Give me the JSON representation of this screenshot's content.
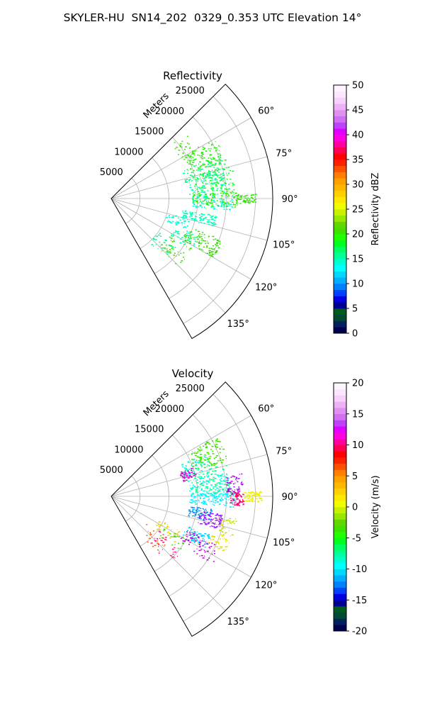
{
  "figure_title": "SKYLER-HU  SN14_202  0329_0.353 UTC Elevation 14°",
  "colors": {
    "grid": "#b0b0b0",
    "frame": "#000000"
  },
  "chart_data": [
    {
      "type": "polar-sector",
      "title": "Reflectivity",
      "range_label": "Meters",
      "theta_range_deg": [
        45,
        150
      ],
      "theta_ticks_deg": [
        45,
        60,
        75,
        90,
        105,
        120,
        135,
        150
      ],
      "theta_tick_labels": [
        "60°",
        "75°",
        "90°",
        "105°",
        "120°",
        "135°"
      ],
      "r_range_m": [
        0,
        28000
      ],
      "r_ticks_m": [
        5000,
        10000,
        15000,
        20000,
        25000
      ],
      "r_tick_labels": [
        "5000",
        "10000",
        "15000",
        "20000",
        "25000"
      ],
      "grid": true,
      "echo_clusters": [
        {
          "theta": [
            48,
            62
          ],
          "r": [
            13500,
            17500
          ],
          "color": "#44e800",
          "density": 0.15
        },
        {
          "theta": [
            60,
            72
          ],
          "r": [
            14500,
            21000
          ],
          "color": "#2aef10",
          "density": 0.55
        },
        {
          "theta": [
            68,
            78
          ],
          "r": [
            13000,
            20500
          ],
          "color": "#00ff7a",
          "density": 0.35
        },
        {
          "theta": [
            74,
            86
          ],
          "r": [
            14500,
            21500
          ],
          "color": "#08ff2c",
          "density": 0.55
        },
        {
          "theta": [
            76,
            88
          ],
          "r": [
            13500,
            20000
          ],
          "color": "#00ffc0",
          "density": 0.3
        },
        {
          "theta": [
            86,
            94
          ],
          "r": [
            14000,
            22000
          ],
          "color": "#28f000",
          "density": 0.6
        },
        {
          "theta": [
            88,
            96
          ],
          "r": [
            14000,
            21000
          ],
          "color": "#00ffd8",
          "density": 0.35
        },
        {
          "theta": [
            88,
            92
          ],
          "r": [
            21500,
            25000
          ],
          "color": "#2ce800",
          "density": 0.3
        },
        {
          "theta": [
            99,
            105
          ],
          "r": [
            12500,
            18500
          ],
          "color": "#00ffb8",
          "density": 0.45
        },
        {
          "theta": [
            104,
            112
          ],
          "r": [
            10000,
            14000
          ],
          "color": "#00ffd0",
          "density": 0.2
        },
        {
          "theta": [
            110,
            120
          ],
          "r": [
            14000,
            20500
          ],
          "color": "#34e000",
          "density": 0.5
        },
        {
          "theta": [
            113,
            123
          ],
          "r": [
            12000,
            16500
          ],
          "color": "#00ffaa",
          "density": 0.2
        },
        {
          "theta": [
            122,
            136
          ],
          "r": [
            11500,
            16500
          ],
          "color": "#42de00",
          "density": 0.2
        },
        {
          "theta": [
            125,
            140
          ],
          "r": [
            9500,
            14000
          ],
          "color": "#00ff90",
          "density": 0.12
        }
      ],
      "colorbar": {
        "label": "Reflectivity dBZ",
        "range": [
          0,
          50
        ],
        "ticks": [
          0,
          5,
          10,
          15,
          20,
          25,
          30,
          35,
          40,
          45,
          50
        ],
        "colors": [
          "#000050",
          "#002060",
          "#004a33",
          "#005a20",
          "#000090",
          "#0000e0",
          "#0040ff",
          "#0080ff",
          "#00b0ff",
          "#00d8ff",
          "#00ffff",
          "#00ffd0",
          "#00ff9a",
          "#00ff60",
          "#00ff20",
          "#20ff00",
          "#40e000",
          "#60d800",
          "#98e800",
          "#c8f000",
          "#f0ff00",
          "#ffe800",
          "#ffd000",
          "#ffb800",
          "#ffa000",
          "#ff8000",
          "#ff5000",
          "#ff2000",
          "#ff0000",
          "#ff0050",
          "#ff00a0",
          "#ff00e0",
          "#e000ff",
          "#c040ff",
          "#d070f0",
          "#e090f0",
          "#f0b0f8",
          "#f8d0fc",
          "#fce8fe",
          "#fff4ff"
        ]
      }
    },
    {
      "type": "polar-sector",
      "title": "Velocity",
      "range_label": "Meters",
      "theta_range_deg": [
        45,
        150
      ],
      "theta_ticks_deg": [
        45,
        60,
        75,
        90,
        105,
        120,
        135,
        150
      ],
      "theta_tick_labels": [
        "60°",
        "75°",
        "90°",
        "105°",
        "120°",
        "135°"
      ],
      "r_range_m": [
        0,
        28000
      ],
      "r_ticks_m": [
        5000,
        10000,
        15000,
        20000,
        25000
      ],
      "r_tick_labels": [
        "5000",
        "10000",
        "15000",
        "20000",
        "25000"
      ],
      "grid": true,
      "echo_clusters": [
        {
          "theta": [
            60,
            73
          ],
          "r": [
            15000,
            21000
          ],
          "color": "#40e000",
          "density": 0.55
        },
        {
          "theta": [
            65,
            76
          ],
          "r": [
            13000,
            18000
          ],
          "color": "#00ffd8",
          "density": 0.3
        },
        {
          "theta": [
            70,
            78
          ],
          "r": [
            12500,
            15000
          ],
          "color": "#d000d0",
          "density": 0.25
        },
        {
          "theta": [
            74,
            88
          ],
          "r": [
            14500,
            21000
          ],
          "color": "#00ff80",
          "density": 0.45
        },
        {
          "theta": [
            78,
            90
          ],
          "r": [
            13500,
            20500
          ],
          "color": "#00ffe8",
          "density": 0.5
        },
        {
          "theta": [
            80,
            88
          ],
          "r": [
            20000,
            23000
          ],
          "color": "#b000f0",
          "density": 0.25
        },
        {
          "theta": [
            88,
            95
          ],
          "r": [
            13500,
            21500
          ],
          "color": "#00f0ff",
          "density": 0.55
        },
        {
          "theta": [
            88,
            94
          ],
          "r": [
            20500,
            23000
          ],
          "color": "#ff0070",
          "density": 0.3
        },
        {
          "theta": [
            88,
            92
          ],
          "r": [
            23000,
            26000
          ],
          "color": "#f0f000",
          "density": 0.35
        },
        {
          "theta": [
            97,
            104
          ],
          "r": [
            13500,
            17500
          ],
          "color": "#0090ff",
          "density": 0.35
        },
        {
          "theta": [
            99,
            107
          ],
          "r": [
            15500,
            19500
          ],
          "color": "#a020f0",
          "density": 0.4
        },
        {
          "theta": [
            100,
            108
          ],
          "r": [
            19500,
            22000
          ],
          "color": "#c8e000",
          "density": 0.15
        },
        {
          "theta": [
            108,
            116
          ],
          "r": [
            18500,
            22000
          ],
          "color": "#f0e000",
          "density": 0.2
        },
        {
          "theta": [
            111,
            119
          ],
          "r": [
            14000,
            18500
          ],
          "color": "#00d0ff",
          "density": 0.3
        },
        {
          "theta": [
            114,
            124
          ],
          "r": [
            14000,
            21000
          ],
          "color": "#c000e0",
          "density": 0.3
        },
        {
          "theta": [
            116,
            126
          ],
          "r": [
            9000,
            13500
          ],
          "color": "#e8d000",
          "density": 0.15
        },
        {
          "theta": [
            120,
            130
          ],
          "r": [
            10500,
            15000
          ],
          "color": "#40e000",
          "density": 0.1
        },
        {
          "theta": [
            126,
            140
          ],
          "r": [
            10000,
            15500
          ],
          "color": "#ff2080",
          "density": 0.15
        },
        {
          "theta": [
            128,
            142
          ],
          "r": [
            7500,
            13500
          ],
          "color": "#ff6000",
          "density": 0.1
        }
      ],
      "colorbar": {
        "label": "Velocity (m/s)",
        "range": [
          -20,
          20
        ],
        "ticks": [
          -20,
          -15,
          -10,
          -5,
          0,
          5,
          10,
          15,
          20
        ],
        "colors": [
          "#000050",
          "#002060",
          "#004a33",
          "#005a20",
          "#000090",
          "#0000e0",
          "#0040ff",
          "#0080ff",
          "#00b0ff",
          "#00d8ff",
          "#00ffff",
          "#00ffd0",
          "#00ff9a",
          "#00ff60",
          "#00ff20",
          "#20ff00",
          "#40e000",
          "#60d800",
          "#98e800",
          "#c8f000",
          "#f0ff00",
          "#ffe800",
          "#ffd000",
          "#ffb800",
          "#ffa000",
          "#ff8000",
          "#ff5000",
          "#ff2000",
          "#ff0000",
          "#ff0050",
          "#ff00a0",
          "#ff00e0",
          "#e000ff",
          "#c040ff",
          "#d070f0",
          "#e090f0",
          "#f0b0f8",
          "#f8d0fc",
          "#fce8fe",
          "#fff4ff"
        ]
      }
    }
  ]
}
